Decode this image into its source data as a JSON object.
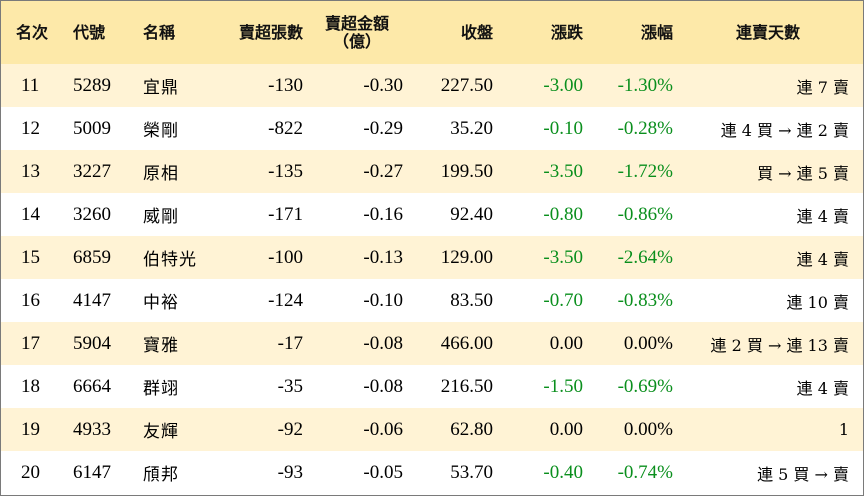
{
  "headers": {
    "rank": "名次",
    "code": "代號",
    "name": "名稱",
    "sell_shares": "賣超張數",
    "sell_amount": "賣超金額",
    "sell_amount_unit": "（億）",
    "close": "收盤",
    "change": "漲跌",
    "pct": "漲幅",
    "streak": "連賣天數"
  },
  "rows": [
    {
      "rank": "11",
      "code": "5289",
      "name": "宜鼎",
      "sell_shares": "-130",
      "sell_amount": "-0.30",
      "close": "227.50",
      "change": "-3.00",
      "pct": "-1.30%",
      "streak": "連 7 賣"
    },
    {
      "rank": "12",
      "code": "5009",
      "name": "榮剛",
      "sell_shares": "-822",
      "sell_amount": "-0.29",
      "close": "35.20",
      "change": "-0.10",
      "pct": "-0.28%",
      "streak": "連 4 買 → 連 2 賣"
    },
    {
      "rank": "13",
      "code": "3227",
      "name": "原相",
      "sell_shares": "-135",
      "sell_amount": "-0.27",
      "close": "199.50",
      "change": "-3.50",
      "pct": "-1.72%",
      "streak": "買 → 連 5 賣"
    },
    {
      "rank": "14",
      "code": "3260",
      "name": "威剛",
      "sell_shares": "-171",
      "sell_amount": "-0.16",
      "close": "92.40",
      "change": "-0.80",
      "pct": "-0.86%",
      "streak": "連 4 賣"
    },
    {
      "rank": "15",
      "code": "6859",
      "name": "伯特光",
      "sell_shares": "-100",
      "sell_amount": "-0.13",
      "close": "129.00",
      "change": "-3.50",
      "pct": "-2.64%",
      "streak": "連 4 賣"
    },
    {
      "rank": "16",
      "code": "4147",
      "name": "中裕",
      "sell_shares": "-124",
      "sell_amount": "-0.10",
      "close": "83.50",
      "change": "-0.70",
      "pct": "-0.83%",
      "streak": "連 10 賣"
    },
    {
      "rank": "17",
      "code": "5904",
      "name": "寶雅",
      "sell_shares": "-17",
      "sell_amount": "-0.08",
      "close": "466.00",
      "change": "0.00",
      "pct": "0.00%",
      "streak": "連 2 買 → 連 13 賣"
    },
    {
      "rank": "18",
      "code": "6664",
      "name": "群翊",
      "sell_shares": "-35",
      "sell_amount": "-0.08",
      "close": "216.50",
      "change": "-1.50",
      "pct": "-0.69%",
      "streak": "連 4 賣"
    },
    {
      "rank": "19",
      "code": "4933",
      "name": "友輝",
      "sell_shares": "-92",
      "sell_amount": "-0.06",
      "close": "62.80",
      "change": "0.00",
      "pct": "0.00%",
      "streak": "1"
    },
    {
      "rank": "20",
      "code": "6147",
      "name": "頎邦",
      "sell_shares": "-93",
      "sell_amount": "-0.05",
      "close": "53.70",
      "change": "-0.40",
      "pct": "-0.74%",
      "streak": "連 5 買 → 賣"
    }
  ],
  "colors": {
    "header_bg": "#fde9a9",
    "stripe_bg": "#fff3d5",
    "negative": "#0a8f1d"
  }
}
